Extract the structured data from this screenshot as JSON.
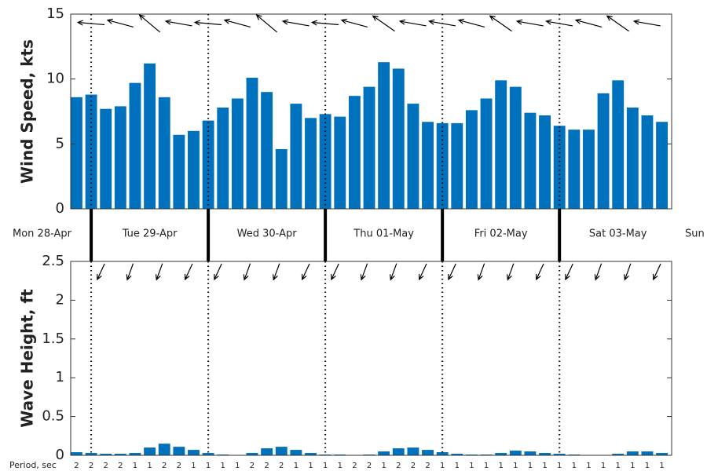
{
  "chart_data": [
    {
      "type": "bar",
      "y_label": "Wind Speed, kts",
      "color": "#0072bd",
      "x": [
        21,
        24,
        27,
        30,
        33,
        36,
        39,
        42,
        45,
        48,
        51,
        54,
        57,
        60,
        63,
        66,
        69,
        72,
        75,
        78,
        81,
        84,
        87,
        90,
        93,
        96,
        99,
        102,
        105,
        108,
        111,
        114,
        117,
        120,
        123,
        126,
        129,
        132,
        135,
        138,
        141
      ],
      "values": [
        8.6,
        8.8,
        7.7,
        7.9,
        9.7,
        11.2,
        8.6,
        5.7,
        6.0,
        6.8,
        7.8,
        8.5,
        10.1,
        9.0,
        4.6,
        8.1,
        7.0,
        7.3,
        7.1,
        8.7,
        9.4,
        11.3,
        10.8,
        8.1,
        6.7,
        6.6,
        6.6,
        7.6,
        8.5,
        9.9,
        9.4,
        7.4,
        7.2,
        6.4,
        6.1,
        6.1,
        8.9,
        9.9,
        7.8,
        7.2,
        6.7
      ],
      "direction_x": [
        24,
        30,
        36,
        42,
        48,
        54,
        60,
        66,
        72,
        78,
        84,
        90,
        96,
        102,
        108,
        114,
        120,
        126,
        132,
        138
      ],
      "directions": [
        275,
        285,
        310,
        280,
        275,
        285,
        310,
        280,
        275,
        285,
        305,
        280,
        280,
        285,
        305,
        280,
        280,
        285,
        305,
        280
      ],
      "xlim": [
        19.8,
        143
      ],
      "ylim": [
        0,
        15
      ],
      "yticks": [
        0,
        5,
        10,
        15
      ],
      "xticks": [
        24,
        48,
        72,
        96,
        120
      ],
      "day_labels": [
        {
          "value": 12,
          "label": "Mon 28-Apr"
        },
        {
          "value": 36,
          "label": "Tue 29-Apr"
        },
        {
          "value": 60,
          "label": "Wed 30-Apr"
        },
        {
          "value": 84,
          "label": "Thu 01-May"
        },
        {
          "value": 108,
          "label": "Fri 02-May"
        },
        {
          "value": 132,
          "label": "Sat 03-May"
        },
        {
          "value": 156,
          "label": "Sun"
        }
      ]
    },
    {
      "type": "bar",
      "y_label": "Wave Height, ft",
      "color": "#0072bd",
      "x": [
        21,
        24,
        27,
        30,
        33,
        36,
        39,
        42,
        45,
        48,
        51,
        54,
        57,
        60,
        63,
        66,
        69,
        72,
        75,
        78,
        81,
        84,
        87,
        90,
        93,
        96,
        99,
        102,
        105,
        108,
        111,
        114,
        117,
        120,
        123,
        126,
        129,
        132,
        135,
        138,
        141
      ],
      "values": [
        0.04,
        0.03,
        0.02,
        0.02,
        0.03,
        0.1,
        0.15,
        0.11,
        0.07,
        0.03,
        0.01,
        0,
        0.03,
        0.09,
        0.11,
        0.07,
        0.03,
        0.01,
        0.01,
        0,
        0.01,
        0.05,
        0.09,
        0.1,
        0.07,
        0.04,
        0.02,
        0.01,
        0.01,
        0.03,
        0.06,
        0.05,
        0.03,
        0.02,
        0.01,
        0,
        0,
        0.02,
        0.05,
        0.05,
        0.03
      ],
      "direction_x": [
        26,
        32,
        38,
        44,
        50,
        56,
        62,
        68,
        74,
        80,
        86,
        92,
        98,
        104,
        110,
        116,
        122,
        128,
        134,
        140
      ],
      "directions": [
        205,
        200,
        200,
        205,
        205,
        200,
        200,
        205,
        205,
        200,
        200,
        205,
        205,
        200,
        200,
        205,
        205,
        200,
        200,
        205
      ],
      "xlim": [
        19.8,
        143
      ],
      "ylim": [
        0,
        2.5
      ],
      "yticks": [
        0,
        0.5,
        1,
        1.5,
        2,
        2.5
      ],
      "xticks": [
        24,
        48,
        72,
        96,
        120
      ],
      "period_label": "Period, sec",
      "periods": [
        2,
        2,
        2,
        2,
        1,
        1,
        2,
        2,
        1,
        1,
        1,
        1,
        2,
        2,
        2,
        1,
        1,
        1,
        1,
        2,
        2,
        1,
        2,
        2,
        2,
        1,
        1,
        1,
        1,
        1,
        1,
        1,
        1,
        1,
        1,
        1,
        1,
        1,
        1,
        1,
        1
      ]
    }
  ]
}
